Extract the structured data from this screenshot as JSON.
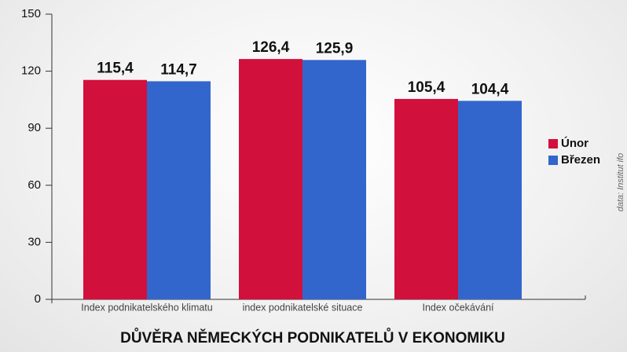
{
  "chart_data": {
    "type": "bar",
    "title": "DŮVĚRA NĚMECKÝCH PODNIKATELŮ V EKONOMIKU",
    "source": "data: Institut ifo",
    "categories": [
      "Index podnikatelského klimatu",
      "index podnikatelské situace",
      "Index očekávání"
    ],
    "series": [
      {
        "name": "Únor",
        "color": "#d2103c",
        "values": [
          115.4,
          126.4,
          105.4
        ],
        "value_labels": [
          "115,4",
          "126,4",
          "105,4"
        ]
      },
      {
        "name": "Březen",
        "color": "#3366cc",
        "values": [
          114.7,
          125.9,
          104.4
        ],
        "value_labels": [
          "114,7",
          "125,9",
          "104,4"
        ]
      }
    ],
    "ylim": [
      0,
      150
    ],
    "yticks": [
      0,
      30,
      60,
      90,
      120,
      150
    ],
    "legend": "right"
  }
}
